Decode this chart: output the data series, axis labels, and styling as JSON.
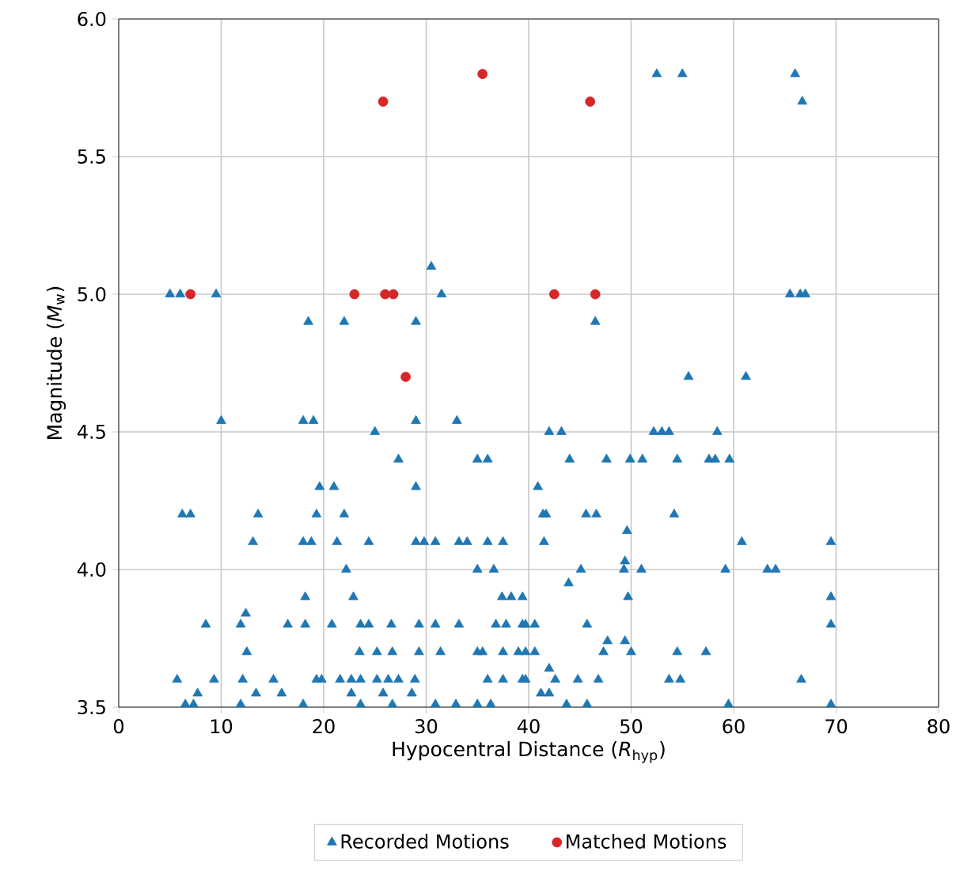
{
  "chart_data": {
    "type": "scatter",
    "xlabel": "Hypocentral Distance (*R*$_{hyp}$)",
    "ylabel": "Magnitude (*M*$_{w}$)",
    "xlim": [
      0,
      80
    ],
    "ylim": [
      3.5,
      6.0
    ],
    "xticks": [
      0,
      10,
      20,
      30,
      40,
      50,
      60,
      70,
      80
    ],
    "yticks": [
      {
        "value": 3.5,
        "label": "3.5"
      },
      {
        "value": 4.0,
        "label": "4.0"
      },
      {
        "value": 4.5,
        "label": "4.5"
      },
      {
        "value": 5.0,
        "label": "5.0"
      },
      {
        "value": 5.5,
        "label": "5.5"
      },
      {
        "value": 6.0,
        "label": "6.0"
      }
    ],
    "grid": true,
    "legend": "bottom",
    "series": [
      {
        "name": "Recorded Motions",
        "color": "#1f77b4",
        "marker": "triangle",
        "x": [
          52.5,
          55,
          66,
          66.7,
          5,
          6,
          9.5,
          30.5,
          31.5,
          46.5,
          65.5,
          66.5,
          67,
          18.5,
          22,
          29,
          10,
          18,
          19,
          29,
          33,
          25,
          27.3,
          35,
          36,
          19.6,
          21,
          29,
          6.2,
          7,
          13.6,
          19.3,
          22,
          13.1,
          18,
          18.8,
          21.3,
          24.4,
          29,
          29.8,
          30.9,
          33.2,
          34,
          36,
          37.5,
          22.2,
          35,
          36.6,
          18.2,
          22.9,
          37.4,
          38.3,
          39.4,
          8.5,
          11.9,
          12.4,
          16.5,
          18.2,
          20.8,
          23.6,
          24.4,
          26.6,
          29.3,
          30.9,
          33.2,
          36.8,
          37.8,
          39.4,
          12.5,
          23.5,
          25.2,
          26.7,
          29.3,
          31.4,
          35,
          35.5,
          37.5,
          39,
          5.7,
          9.3,
          12.1,
          15.1,
          19.3,
          19.8,
          21.6,
          22.7,
          23.6,
          25.2,
          26.3,
          27.3,
          28.9,
          36,
          37.5,
          39.4,
          7.7,
          13.4,
          15.9,
          22.7,
          25.8,
          28.6,
          6.5,
          7.3,
          11.9,
          18,
          23.6,
          26.7,
          30.9,
          32.9,
          35,
          36.3,
          55.6,
          61.2,
          42,
          43.2,
          52.2,
          53,
          53.7,
          58.4,
          44,
          47.6,
          49.9,
          51.1,
          54.5,
          57.6,
          58.2,
          59.6,
          40.9,
          41.4,
          41.7,
          45.6,
          46.6,
          54.2,
          49.6,
          41.5,
          60.8,
          69.5,
          49.4,
          45.1,
          49.3,
          51,
          59.2,
          63.3,
          64.1,
          43.9,
          49.7,
          69.5,
          39.7,
          40.6,
          45.7,
          69.5,
          47.7,
          49.4,
          39.7,
          40.6,
          47.3,
          50,
          54.5,
          57.3,
          42,
          39.7,
          42.6,
          44.8,
          46.8,
          53.7,
          54.8,
          66.6,
          41.2,
          42,
          43.7,
          45.7,
          59.5,
          69.5
        ],
        "values": [
          5.8,
          5.8,
          5.8,
          5.7,
          5.0,
          5.0,
          5.0,
          5.1,
          5.0,
          4.9,
          5.0,
          5.0,
          5.0,
          4.9,
          4.9,
          4.9,
          4.54,
          4.54,
          4.54,
          4.54,
          4.54,
          4.5,
          4.4,
          4.4,
          4.4,
          4.3,
          4.3,
          4.3,
          4.2,
          4.2,
          4.2,
          4.2,
          4.2,
          4.1,
          4.1,
          4.1,
          4.1,
          4.1,
          4.1,
          4.1,
          4.1,
          4.1,
          4.1,
          4.1,
          4.1,
          4.0,
          4.0,
          4.0,
          3.9,
          3.9,
          3.9,
          3.9,
          3.9,
          3.8,
          3.8,
          3.84,
          3.8,
          3.8,
          3.8,
          3.8,
          3.8,
          3.8,
          3.8,
          3.8,
          3.8,
          3.8,
          3.8,
          3.8,
          3.7,
          3.7,
          3.7,
          3.7,
          3.7,
          3.7,
          3.7,
          3.7,
          3.7,
          3.7,
          3.6,
          3.6,
          3.6,
          3.6,
          3.6,
          3.6,
          3.6,
          3.6,
          3.6,
          3.6,
          3.6,
          3.6,
          3.6,
          3.6,
          3.6,
          3.6,
          3.55,
          3.55,
          3.55,
          3.55,
          3.55,
          3.55,
          3.51,
          3.51,
          3.51,
          3.51,
          3.51,
          3.51,
          3.51,
          3.51,
          3.51,
          3.51,
          4.7,
          4.7,
          4.5,
          4.5,
          4.5,
          4.5,
          4.5,
          4.5,
          4.4,
          4.4,
          4.4,
          4.4,
          4.4,
          4.4,
          4.4,
          4.4,
          4.3,
          4.2,
          4.2,
          4.2,
          4.2,
          4.2,
          4.14,
          4.1,
          4.1,
          4.1,
          4.03,
          4.0,
          4.0,
          4.0,
          4.0,
          4.0,
          4.0,
          3.95,
          3.9,
          3.9,
          3.8,
          3.8,
          3.8,
          3.8,
          3.74,
          3.74,
          3.7,
          3.7,
          3.7,
          3.7,
          3.7,
          3.7,
          3.64,
          3.6,
          3.6,
          3.6,
          3.6,
          3.6,
          3.6,
          3.6,
          3.55,
          3.55,
          3.51,
          3.51,
          3.51,
          3.51
        ]
      },
      {
        "name": "Matched Motions",
        "color": "#d62728",
        "marker": "circle",
        "x": [
          7,
          23,
          25.8,
          26,
          26.8,
          28,
          35.5,
          42.5,
          46,
          46.5
        ],
        "values": [
          5.0,
          5.0,
          5.7,
          5.0,
          5.0,
          4.7,
          5.8,
          5.0,
          5.7,
          5.0
        ]
      }
    ]
  }
}
